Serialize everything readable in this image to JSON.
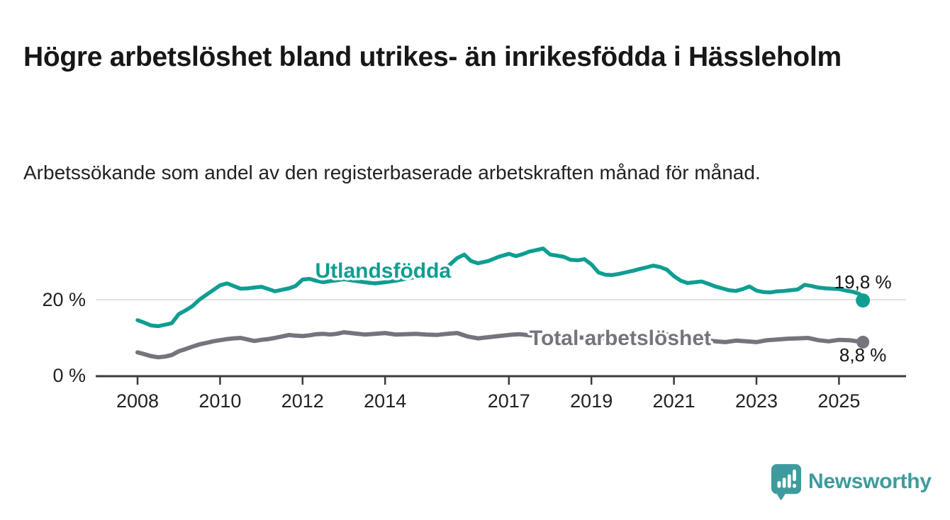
{
  "header": {
    "title": "Högre arbetslöshet bland utrikes- än inrikesfödda i Hässleholm",
    "subtitle": "Arbetssökande som andel av den registerbaserade arbetskraften månad för månad."
  },
  "chart_data": {
    "type": "line",
    "title": "Högre arbetslöshet bland utrikes- än inrikesfödda i Hässleholm",
    "subtitle": "Arbetssökande som andel av den registerbaserade arbetskraften månad för månad.",
    "unit": "%",
    "grid": "horizontal-only",
    "x_axis": {
      "range": [
        2007.5,
        2026.3
      ],
      "ticks": [
        2008,
        2010,
        2012,
        2014,
        2017,
        2019,
        2021,
        2023,
        2025
      ]
    },
    "y_axis": {
      "range": [
        0,
        36
      ],
      "ticks": [
        {
          "value": 0,
          "label": "0 %"
        },
        {
          "value": 20,
          "label": "20 %"
        }
      ]
    },
    "series": [
      {
        "id": "utlandsfodda",
        "name": "Utlandsfödda",
        "color": "#0E9E92",
        "end_label": {
          "text": "19,8 %",
          "position": "above"
        },
        "name_label_at": {
          "x": 2013.95,
          "y": 27.7
        },
        "points": [
          [
            2008.0,
            14.6
          ],
          [
            2008.17,
            13.9
          ],
          [
            2008.33,
            13.2
          ],
          [
            2008.5,
            13.0
          ],
          [
            2008.67,
            13.4
          ],
          [
            2008.83,
            13.8
          ],
          [
            2009.0,
            16.2
          ],
          [
            2009.17,
            17.2
          ],
          [
            2009.33,
            18.3
          ],
          [
            2009.5,
            20.0
          ],
          [
            2009.67,
            21.3
          ],
          [
            2009.83,
            22.5
          ],
          [
            2010.0,
            23.8
          ],
          [
            2010.17,
            24.3
          ],
          [
            2010.33,
            23.6
          ],
          [
            2010.5,
            22.9
          ],
          [
            2010.67,
            23.0
          ],
          [
            2010.83,
            23.2
          ],
          [
            2011.0,
            23.4
          ],
          [
            2011.17,
            22.8
          ],
          [
            2011.33,
            22.2
          ],
          [
            2011.5,
            22.6
          ],
          [
            2011.67,
            23.0
          ],
          [
            2011.83,
            23.6
          ],
          [
            2012.0,
            25.3
          ],
          [
            2012.17,
            25.5
          ],
          [
            2012.33,
            25.0
          ],
          [
            2012.5,
            24.6
          ],
          [
            2012.67,
            24.9
          ],
          [
            2012.83,
            25.1
          ],
          [
            2013.0,
            25.4
          ],
          [
            2013.25,
            25.0
          ],
          [
            2013.5,
            24.6
          ],
          [
            2013.75,
            24.3
          ],
          [
            2014.0,
            24.6
          ],
          [
            2014.25,
            25.0
          ],
          [
            2014.5,
            25.5
          ],
          [
            2014.75,
            26.0
          ],
          [
            2015.0,
            26.6
          ],
          [
            2015.25,
            27.4
          ],
          [
            2015.5,
            28.6
          ],
          [
            2015.75,
            31.0
          ],
          [
            2015.92,
            31.9
          ],
          [
            2016.08,
            30.2
          ],
          [
            2016.25,
            29.6
          ],
          [
            2016.5,
            30.2
          ],
          [
            2016.75,
            31.3
          ],
          [
            2017.0,
            32.1
          ],
          [
            2017.17,
            31.5
          ],
          [
            2017.33,
            32.0
          ],
          [
            2017.5,
            32.7
          ],
          [
            2017.67,
            33.1
          ],
          [
            2017.83,
            33.5
          ],
          [
            2018.0,
            31.9
          ],
          [
            2018.17,
            31.6
          ],
          [
            2018.33,
            31.3
          ],
          [
            2018.5,
            30.5
          ],
          [
            2018.67,
            30.4
          ],
          [
            2018.83,
            30.7
          ],
          [
            2019.0,
            29.3
          ],
          [
            2019.17,
            27.2
          ],
          [
            2019.33,
            26.6
          ],
          [
            2019.5,
            26.5
          ],
          [
            2019.67,
            26.8
          ],
          [
            2019.83,
            27.2
          ],
          [
            2020.0,
            27.6
          ],
          [
            2020.17,
            28.1
          ],
          [
            2020.33,
            28.5
          ],
          [
            2020.5,
            29.0
          ],
          [
            2020.67,
            28.6
          ],
          [
            2020.83,
            27.9
          ],
          [
            2021.0,
            26.2
          ],
          [
            2021.17,
            25.0
          ],
          [
            2021.33,
            24.4
          ],
          [
            2021.5,
            24.6
          ],
          [
            2021.67,
            24.8
          ],
          [
            2021.83,
            24.2
          ],
          [
            2022.0,
            23.5
          ],
          [
            2022.17,
            23.0
          ],
          [
            2022.33,
            22.5
          ],
          [
            2022.5,
            22.3
          ],
          [
            2022.67,
            22.8
          ],
          [
            2022.83,
            23.5
          ],
          [
            2023.0,
            22.4
          ],
          [
            2023.17,
            22.0
          ],
          [
            2023.33,
            21.9
          ],
          [
            2023.5,
            22.2
          ],
          [
            2023.67,
            22.3
          ],
          [
            2023.83,
            22.5
          ],
          [
            2024.0,
            22.7
          ],
          [
            2024.17,
            23.9
          ],
          [
            2024.33,
            23.6
          ],
          [
            2024.5,
            23.2
          ],
          [
            2024.67,
            23.0
          ],
          [
            2024.83,
            22.9
          ],
          [
            2025.0,
            22.8
          ],
          [
            2025.17,
            22.4
          ],
          [
            2025.33,
            22.1
          ],
          [
            2025.5,
            21.5
          ],
          [
            2025.58,
            19.8
          ]
        ]
      },
      {
        "id": "total",
        "name": "Total arbetslöshet",
        "color": "#75747D",
        "end_label": {
          "text": "8,8 %",
          "position": "below"
        },
        "name_label_at": {
          "x": 2019.7,
          "y": 9.9
        },
        "points": [
          [
            2008.0,
            6.1
          ],
          [
            2008.17,
            5.6
          ],
          [
            2008.33,
            5.1
          ],
          [
            2008.5,
            4.8
          ],
          [
            2008.67,
            5.0
          ],
          [
            2008.83,
            5.4
          ],
          [
            2009.0,
            6.4
          ],
          [
            2009.17,
            7.0
          ],
          [
            2009.33,
            7.6
          ],
          [
            2009.5,
            8.2
          ],
          [
            2009.67,
            8.6
          ],
          [
            2009.83,
            9.0
          ],
          [
            2010.0,
            9.3
          ],
          [
            2010.17,
            9.6
          ],
          [
            2010.33,
            9.8
          ],
          [
            2010.5,
            9.9
          ],
          [
            2010.67,
            9.5
          ],
          [
            2010.83,
            9.1
          ],
          [
            2011.0,
            9.4
          ],
          [
            2011.17,
            9.6
          ],
          [
            2011.33,
            9.9
          ],
          [
            2011.5,
            10.3
          ],
          [
            2011.67,
            10.7
          ],
          [
            2011.83,
            10.5
          ],
          [
            2012.0,
            10.4
          ],
          [
            2012.17,
            10.6
          ],
          [
            2012.33,
            10.9
          ],
          [
            2012.5,
            11.0
          ],
          [
            2012.67,
            10.8
          ],
          [
            2012.83,
            11.0
          ],
          [
            2013.0,
            11.4
          ],
          [
            2013.25,
            11.1
          ],
          [
            2013.5,
            10.8
          ],
          [
            2013.75,
            11.0
          ],
          [
            2014.0,
            11.2
          ],
          [
            2014.25,
            10.8
          ],
          [
            2014.5,
            10.9
          ],
          [
            2014.75,
            11.0
          ],
          [
            2015.0,
            10.8
          ],
          [
            2015.25,
            10.7
          ],
          [
            2015.5,
            11.0
          ],
          [
            2015.75,
            11.2
          ],
          [
            2016.0,
            10.3
          ],
          [
            2016.25,
            9.8
          ],
          [
            2016.5,
            10.1
          ],
          [
            2016.75,
            10.4
          ],
          [
            2017.0,
            10.7
          ],
          [
            2017.25,
            10.9
          ],
          [
            2017.5,
            10.6
          ],
          [
            2017.75,
            10.4
          ],
          [
            2018.0,
            10.3
          ],
          [
            2018.25,
            10.2
          ],
          [
            2018.5,
            10.1
          ],
          [
            2018.75,
            10.0
          ],
          [
            2019.0,
            9.9
          ],
          [
            2019.25,
            9.8
          ],
          [
            2019.5,
            9.7
          ],
          [
            2019.75,
            9.9
          ],
          [
            2020.0,
            10.1
          ],
          [
            2020.25,
            10.7
          ],
          [
            2020.5,
            11.0
          ],
          [
            2020.75,
            10.9
          ],
          [
            2021.0,
            10.7
          ],
          [
            2021.25,
            10.3
          ],
          [
            2021.5,
            9.9
          ],
          [
            2021.75,
            9.4
          ],
          [
            2022.0,
            9.0
          ],
          [
            2022.25,
            8.8
          ],
          [
            2022.5,
            9.2
          ],
          [
            2022.75,
            9.0
          ],
          [
            2023.0,
            8.8
          ],
          [
            2023.25,
            9.3
          ],
          [
            2023.5,
            9.5
          ],
          [
            2023.75,
            9.7
          ],
          [
            2024.0,
            9.8
          ],
          [
            2024.25,
            9.9
          ],
          [
            2024.5,
            9.3
          ],
          [
            2024.75,
            9.0
          ],
          [
            2025.0,
            9.4
          ],
          [
            2025.25,
            9.3
          ],
          [
            2025.58,
            8.8
          ]
        ]
      }
    ],
    "colors": {
      "axis": "#3B3B3B",
      "gridline": "#DADADA",
      "tick_text": "#222222",
      "value_text": "#141414"
    }
  },
  "branding": {
    "logo_text": "Newsworthy",
    "logo_color": "#3E9B9D"
  }
}
